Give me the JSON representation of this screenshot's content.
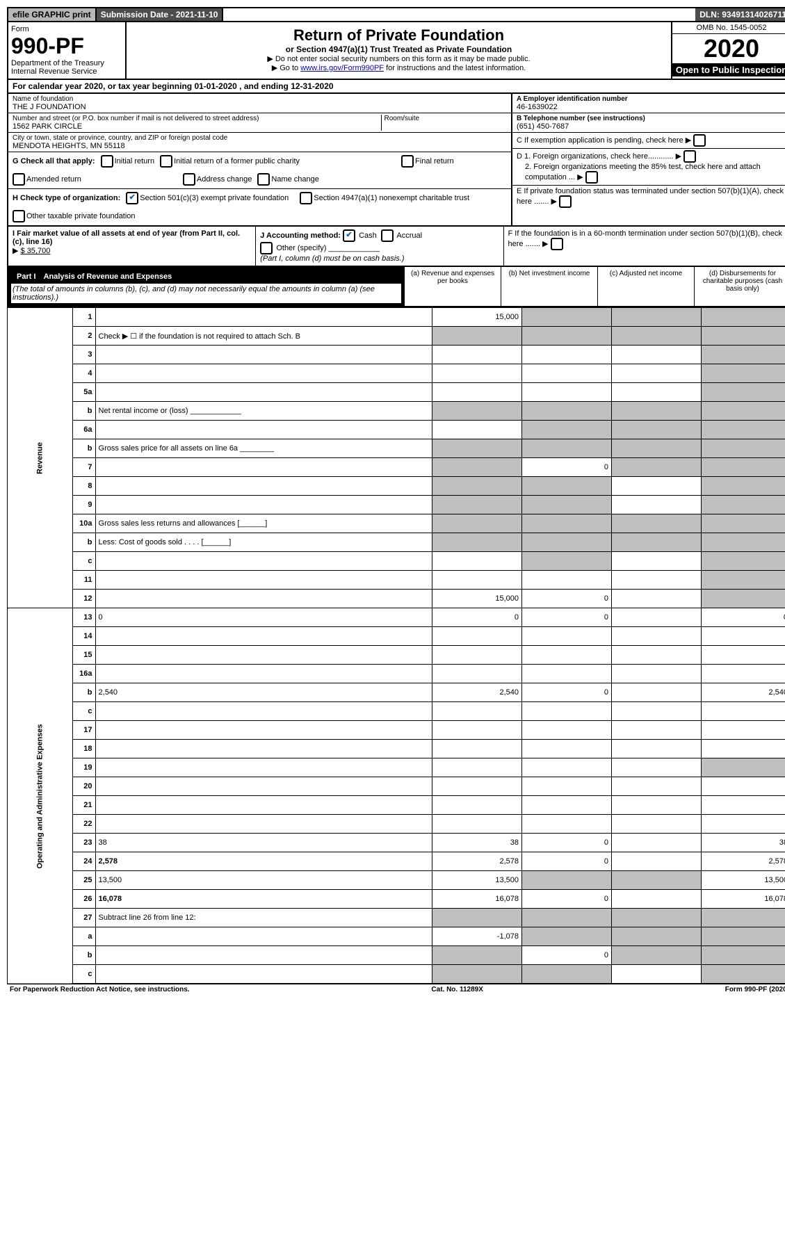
{
  "topbar": {
    "efile": "efile GRAPHIC print",
    "subdate": "Submission Date - 2021-11-10",
    "dln": "DLN: 93491314026711"
  },
  "header": {
    "form_label": "Form",
    "form_no": "990-PF",
    "dept": "Department of the Treasury",
    "irs": "Internal Revenue Service",
    "title": "Return of Private Foundation",
    "sub": "or Section 4947(a)(1) Trust Treated as Private Foundation",
    "instr1": "▶ Do not enter social security numbers on this form as it may be made public.",
    "instr2_pre": "▶ Go to ",
    "instr2_link": "www.irs.gov/Form990PF",
    "instr2_post": " for instructions and the latest information.",
    "omb": "OMB No. 1545-0052",
    "year": "2020",
    "open": "Open to Public Inspection"
  },
  "cal": {
    "text_pre": "For calendar year 2020, or tax year beginning ",
    "begin": "01-01-2020",
    "mid": " , and ending ",
    "end": "12-31-2020"
  },
  "id": {
    "name_lbl": "Name of foundation",
    "name": "THE J FOUNDATION",
    "addr_lbl": "Number and street (or P.O. box number if mail is not delivered to street address)",
    "addr": "1562 PARK CIRCLE",
    "room_lbl": "Room/suite",
    "city_lbl": "City or town, state or province, country, and ZIP or foreign postal code",
    "city": "MENDOTA HEIGHTS, MN  55118",
    "a_lbl": "A Employer identification number",
    "a_val": "46-1639022",
    "b_lbl": "B Telephone number (see instructions)",
    "b_val": "(651) 450-7687",
    "c_lbl": "C If exemption application is pending, check here",
    "d1": "D 1. Foreign organizations, check here............",
    "d2": "2. Foreign organizations meeting the 85% test, check here and attach computation ...",
    "e": "E If private foundation status was terminated under section 507(b)(1)(A), check here .......",
    "f": "F If the foundation is in a 60-month termination under section 507(b)(1)(B), check here .......",
    "g_lbl": "G Check all that apply:",
    "g_opts": [
      "Initial return",
      "Final return",
      "Address change",
      "Initial return of a former public charity",
      "Amended return",
      "Name change"
    ],
    "h_lbl": "H Check type of organization:",
    "h1": "Section 501(c)(3) exempt private foundation",
    "h2": "Section 4947(a)(1) nonexempt charitable trust",
    "h3": "Other taxable private foundation",
    "i_lbl": "I Fair market value of all assets at end of year (from Part II, col. (c), line 16)",
    "i_val": "$  35,700",
    "j_lbl": "J Accounting method:",
    "j_cash": "Cash",
    "j_accr": "Accrual",
    "j_other": "Other (specify)",
    "j_note": "(Part I, column (d) must be on cash basis.)"
  },
  "part1": {
    "hdr": "Part I",
    "title": "Analysis of Revenue and Expenses",
    "note": "(The total of amounts in columns (b), (c), and (d) may not necessarily equal the amounts in column (a) (see instructions).)",
    "col_a": "(a) Revenue and expenses per books",
    "col_b": "(b) Net investment income",
    "col_c": "(c) Adjusted net income",
    "col_d": "(d) Disbursements for charitable purposes (cash basis only)"
  },
  "sections": {
    "rev": "Revenue",
    "ope": "Operating and Administrative Expenses"
  },
  "rows": [
    {
      "n": "1",
      "d": "",
      "a": "15,000",
      "b": "",
      "c": "",
      "gb": true,
      "gc": true,
      "gd": true
    },
    {
      "n": "2",
      "d": "Check ▶ ☐ if the foundation is not required to attach Sch. B",
      "nocols": true
    },
    {
      "n": "3",
      "d": "",
      "a": "",
      "b": "",
      "c": "",
      "gd": true
    },
    {
      "n": "4",
      "d": "",
      "a": "",
      "b": "",
      "c": "",
      "gd": true
    },
    {
      "n": "5a",
      "d": "",
      "a": "",
      "b": "",
      "c": "",
      "gd": true
    },
    {
      "n": "b",
      "d": "Net rental income or (loss)  ____________",
      "nocols": true
    },
    {
      "n": "6a",
      "d": "",
      "a": "",
      "b": "",
      "c": "",
      "gb": true,
      "gc": true,
      "gd": true
    },
    {
      "n": "b",
      "d": "Gross sales price for all assets on line 6a ________",
      "nocols": true,
      "ga": true
    },
    {
      "n": "7",
      "d": "",
      "a": "",
      "b": "0",
      "c": "",
      "ga": true,
      "gc": true,
      "gd": true
    },
    {
      "n": "8",
      "d": "",
      "a": "",
      "b": "",
      "c": "",
      "ga": true,
      "gb": true,
      "gd": true
    },
    {
      "n": "9",
      "d": "",
      "a": "",
      "b": "",
      "c": "",
      "ga": true,
      "gb": true,
      "gd": true
    },
    {
      "n": "10a",
      "d": "Gross sales less returns and allowances  [______]",
      "nocols": true
    },
    {
      "n": "b",
      "d": "Less: Cost of goods sold  .  .  .  .  [______]",
      "nocols": true,
      "ga": true
    },
    {
      "n": "c",
      "d": "",
      "a": "",
      "b": "",
      "c": "",
      "gb": true,
      "gd": true
    },
    {
      "n": "11",
      "d": "",
      "a": "",
      "b": "",
      "c": "",
      "gd": true
    },
    {
      "n": "12",
      "d": "",
      "a": "15,000",
      "b": "0",
      "c": "",
      "bold": true,
      "gd": true
    },
    {
      "n": "13",
      "d": "0",
      "a": "0",
      "b": "0",
      "c": ""
    },
    {
      "n": "14",
      "d": "",
      "a": "",
      "b": "",
      "c": ""
    },
    {
      "n": "15",
      "d": "",
      "a": "",
      "b": "",
      "c": ""
    },
    {
      "n": "16a",
      "d": "",
      "a": "",
      "b": "",
      "c": ""
    },
    {
      "n": "b",
      "d": "2,540",
      "a": "2,540",
      "b": "0",
      "c": ""
    },
    {
      "n": "c",
      "d": "",
      "a": "",
      "b": "",
      "c": ""
    },
    {
      "n": "17",
      "d": "",
      "a": "",
      "b": "",
      "c": ""
    },
    {
      "n": "18",
      "d": "",
      "a": "",
      "b": "",
      "c": ""
    },
    {
      "n": "19",
      "d": "",
      "a": "",
      "b": "",
      "c": "",
      "gd": true
    },
    {
      "n": "20",
      "d": "",
      "a": "",
      "b": "",
      "c": ""
    },
    {
      "n": "21",
      "d": "",
      "a": "",
      "b": "",
      "c": ""
    },
    {
      "n": "22",
      "d": "",
      "a": "",
      "b": "",
      "c": ""
    },
    {
      "n": "23",
      "d": "38",
      "a": "38",
      "b": "0",
      "c": ""
    },
    {
      "n": "24",
      "d": "2,578",
      "a": "2,578",
      "b": "0",
      "c": "",
      "bold": true
    },
    {
      "n": "25",
      "d": "13,500",
      "a": "13,500",
      "b": "",
      "c": "",
      "gb": true,
      "gc": true
    },
    {
      "n": "26",
      "d": "16,078",
      "a": "16,078",
      "b": "0",
      "c": "",
      "bold": true
    },
    {
      "n": "27",
      "d": "Subtract line 26 from line 12:",
      "nocols": true,
      "ga": true
    },
    {
      "n": "a",
      "d": "",
      "a": "-1,078",
      "b": "",
      "c": "",
      "bold": true,
      "gb": true,
      "gc": true,
      "gd": true
    },
    {
      "n": "b",
      "d": "",
      "a": "",
      "b": "0",
      "c": "",
      "bold": true,
      "ga": true,
      "gc": true,
      "gd": true
    },
    {
      "n": "c",
      "d": "",
      "a": "",
      "b": "",
      "c": "",
      "bold": true,
      "ga": true,
      "gb": true,
      "gd": true
    }
  ],
  "footer": {
    "l": "For Paperwork Reduction Act Notice, see instructions.",
    "m": "Cat. No. 11289X",
    "r": "Form 990-PF (2020)"
  }
}
